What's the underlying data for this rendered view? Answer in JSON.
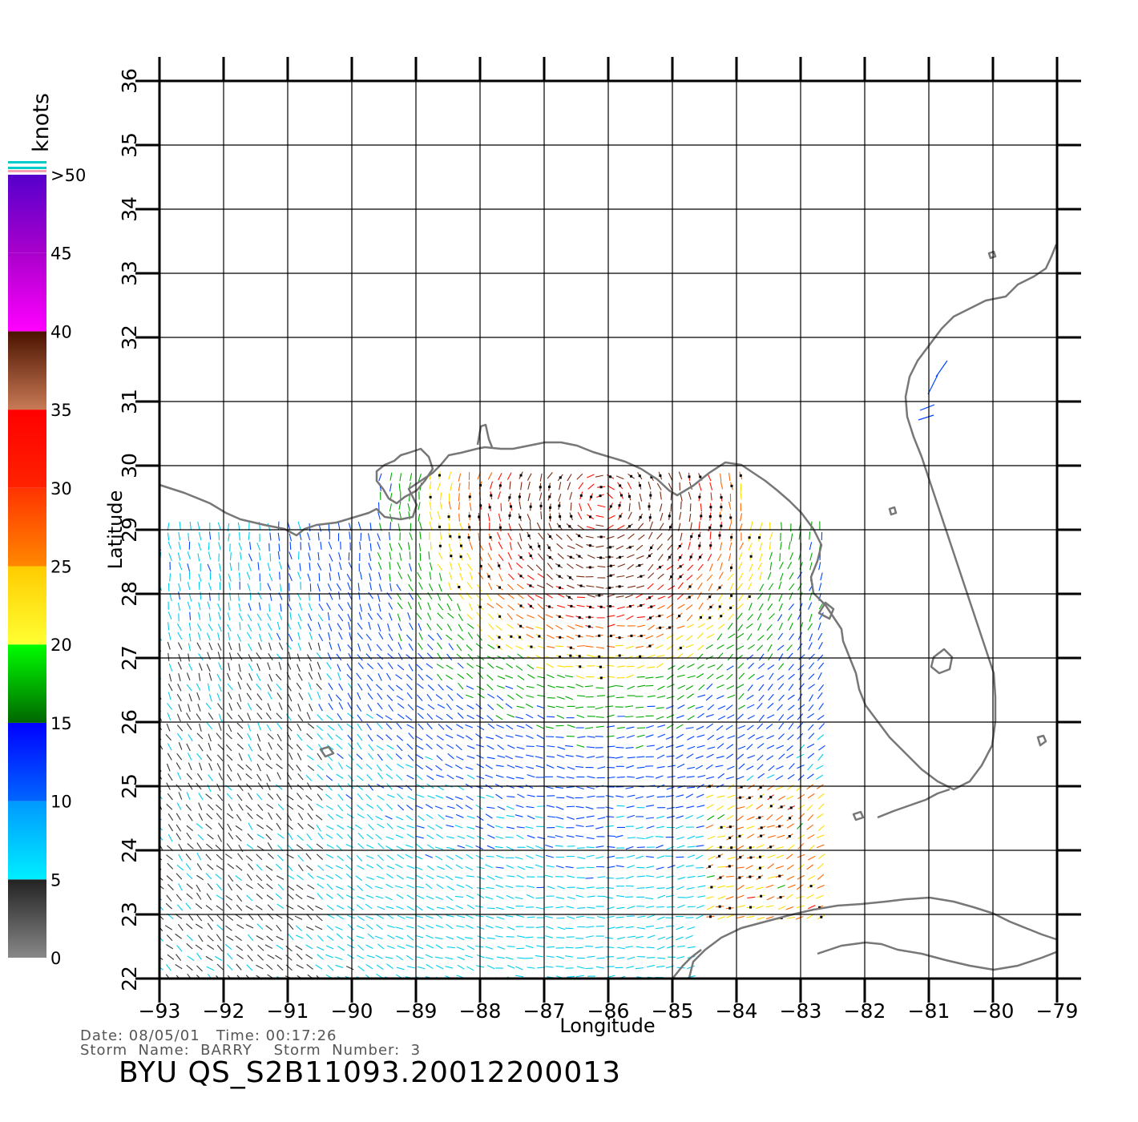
{
  "map": {
    "lon_ticks": [
      "−93",
      "−92",
      "−91",
      "−90",
      "−89",
      "−88",
      "−87",
      "−86",
      "−85",
      "−84",
      "−83",
      "−82",
      "−81",
      "−80",
      "−79"
    ],
    "lat_ticks": [
      "22",
      "23",
      "24",
      "25",
      "26",
      "27",
      "28",
      "29",
      "30",
      "31",
      "32",
      "33",
      "34",
      "35",
      "36"
    ],
    "lon_range": [
      -93,
      -79
    ],
    "lat_range": [
      22,
      36
    ],
    "xlabel": "Longitude",
    "ylabel": "Latitude",
    "grid": true,
    "land_outline_color": "#777777"
  },
  "colorbar": {
    "title": "knots",
    "labels": [
      ">50",
      "45",
      "40",
      "35",
      "30",
      "25",
      "20",
      "15",
      "10",
      "5",
      "0"
    ],
    "scale_range": [
      0,
      50
    ],
    "bands": [
      {
        "from": 0,
        "to": 5,
        "top": "#222222",
        "bottom": "#888888"
      },
      {
        "from": 5,
        "to": 10,
        "top": "#0099ff",
        "bottom": "#00eeff"
      },
      {
        "from": 10,
        "to": 15,
        "top": "#0000ff",
        "bottom": "#0066ff"
      },
      {
        "from": 15,
        "to": 20,
        "top": "#00ff00",
        "bottom": "#006600"
      },
      {
        "from": 20,
        "to": 25,
        "top": "#ffcc00",
        "bottom": "#ffff33"
      },
      {
        "from": 25,
        "to": 30,
        "top": "#ff3300",
        "bottom": "#ff8800"
      },
      {
        "from": 30,
        "to": 35,
        "top": "#ff0000",
        "bottom": "#ff2200"
      },
      {
        "from": 35,
        "to": 40,
        "top": "#4a1200",
        "bottom": "#c87a55"
      },
      {
        "from": 40,
        "to": 45,
        "top": "#aa00cc",
        "bottom": "#ff00ff"
      },
      {
        "from": 45,
        "to": 50,
        "top": "#5500cc",
        "bottom": "#aa00cc"
      }
    ]
  },
  "info": {
    "date_line": "Date: 08/05/01   Time: 00:17:26",
    "storm_line": "Storm  Name:  BARRY    Storm  Number:  3",
    "product": "BYU  QS_S2B11093.20012200013"
  },
  "storm": {
    "name": "BARRY",
    "number": "3",
    "center_lon": -86.1,
    "center_lat": 29.4
  }
}
